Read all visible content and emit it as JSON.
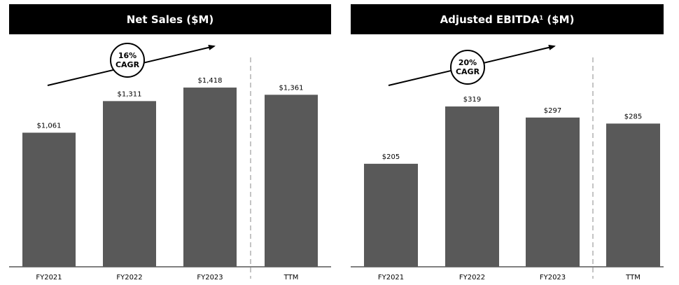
{
  "chart_data": [
    {
      "type": "bar",
      "title": "Net Sales ($M)",
      "categories": [
        "FY2021",
        "FY2022",
        "FY2023",
        "TTM"
      ],
      "values": [
        1061,
        1311,
        1418,
        1361
      ],
      "value_labels": [
        "$1,061",
        "$1,311",
        "$1,418",
        "$1,361"
      ],
      "ylim": [
        0,
        1700
      ],
      "annotation": {
        "line1": "16%",
        "line2": "CAGR"
      },
      "bar_color": "#595959",
      "grid": false
    },
    {
      "type": "bar",
      "title": "Adjusted EBITDA",
      "title_superscript": "1",
      "title_suffix": "($M)",
      "categories": [
        "FY2021",
        "FY2022",
        "FY2023",
        "TTM"
      ],
      "values": [
        205,
        319,
        297,
        285
      ],
      "value_labels": [
        "$205",
        "$319",
        "$297",
        "$285"
      ],
      "ylim": [
        0,
        400
      ],
      "annotation": {
        "line1": "20%",
        "line2": "CAGR"
      },
      "bar_color": "#595959",
      "grid": false
    }
  ]
}
